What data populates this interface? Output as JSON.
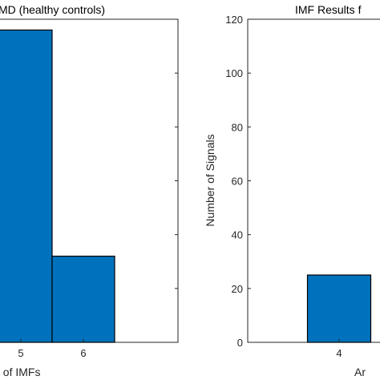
{
  "chart_data": [
    {
      "type": "bar",
      "title": "MD (healthy controls)",
      "xlabel": "t of IMFs",
      "ylabel": "",
      "x": [
        5,
        6
      ],
      "x_ticks": [
        "5",
        "6"
      ],
      "values": [
        116,
        32
      ],
      "ylim": [
        0,
        120
      ],
      "bar_color": "#0072BD",
      "grid": false
    },
    {
      "type": "bar",
      "title": "IMF Results f",
      "xlabel": "Ar",
      "ylabel": "Number of Signals",
      "x": [
        4
      ],
      "x_ticks": [
        "4"
      ],
      "values": [
        25
      ],
      "ylim": [
        0,
        120
      ],
      "y_ticks": [
        "0",
        "20",
        "40",
        "60",
        "80",
        "100",
        "120"
      ],
      "bar_color": "#0072BD",
      "grid": false
    }
  ]
}
